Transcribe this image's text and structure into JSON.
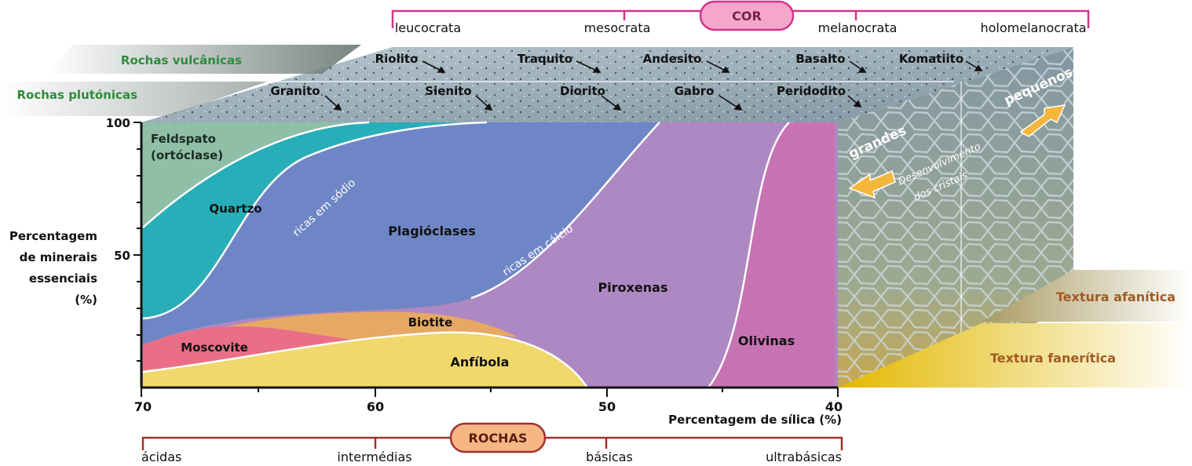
{
  "cor": {
    "title": "COR",
    "labels": [
      "leucocrata",
      "mesocrata",
      "melanocrata",
      "holomelanocrata"
    ]
  },
  "rock_rows": {
    "volcanic_label": "Rochas vulcânicas",
    "plutonic_label": "Rochas plutónicas",
    "volcanic": [
      "Riolito",
      "Traquito",
      "Andesito",
      "Basalto",
      "Komatiito"
    ],
    "plutonic": [
      "Granito",
      "Sienito",
      "Diorito",
      "Gabro",
      "Peridodito"
    ]
  },
  "y_axis": {
    "label_lines": [
      "Percentagem",
      "de minerais",
      "essenciais",
      "(%)"
    ],
    "ticks": [
      "100",
      "50"
    ]
  },
  "x_axis": {
    "label": "Percentagem de sílica (%)",
    "ticks": [
      "70",
      "60",
      "50",
      "40"
    ]
  },
  "minerals": {
    "feldspato_1": "Feldspato",
    "feldspato_2": "(ortóclase)",
    "quartzo": "Quartzo",
    "ricas_sodio": "ricas em sódio",
    "plagioclases": "Plagióclases",
    "ricas_calcio": "ricas em cálcio",
    "biotite": "Biotite",
    "moscovite": "Moscovite",
    "anfibola": "Anfíbola",
    "piroxenas": "Piroxenas",
    "olivinas": "Olivinas"
  },
  "texture": {
    "grandes": "grandes",
    "pequenos": "pequenos",
    "desenvolvimento_1": "Desenvolvimento",
    "desenvolvimento_2": "dos cristais",
    "afanitica": "Textura afanítica",
    "faneritica": "Textura fanerítica"
  },
  "rochas": {
    "title": "ROCHAS",
    "labels": [
      "ácidas",
      "intermédias",
      "básicas",
      "ultrabásicas"
    ]
  },
  "colors": {
    "feldspato": "#8fbfa6",
    "quartzo": "#27aeb8",
    "plagioclases": "#6f86c6",
    "piroxenas": "#ae88c2",
    "olivinas": "#c773b3",
    "anfibola": "#f0d86c",
    "moscovite": "#ea6f86",
    "biotite": "#e7a863",
    "cor_accent": "#d3338a",
    "rochas_accent": "#a0322e",
    "rochas_fill": "#f6b683",
    "label_green": "#2e8b3c",
    "label_brown": "#a25a23"
  }
}
